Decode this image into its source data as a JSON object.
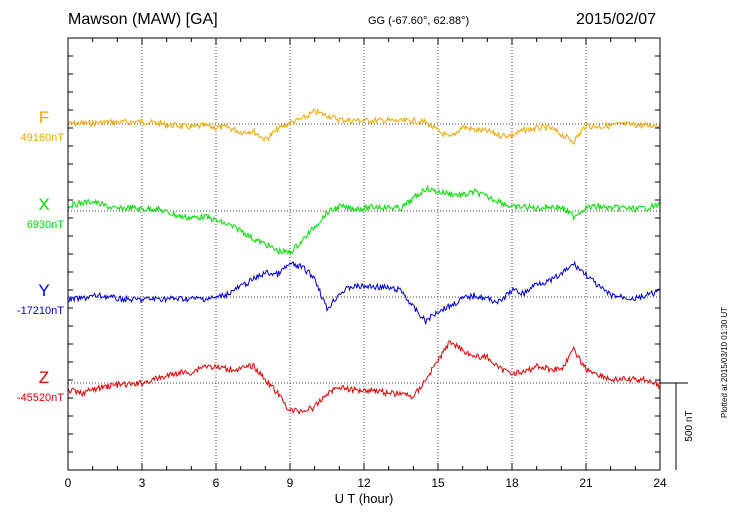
{
  "header": {
    "station": "Mawson (MAW)  [GA]",
    "coordinates": "GG (-67.60°,  62.88°)",
    "date": "2015/02/07"
  },
  "plotted_note": "Plotted at 2015/03/10 01:30 UT",
  "chart_data": {
    "type": "line",
    "title": "Mawson (MAW)  [GA]",
    "xlabel": "U T (hour)",
    "ylabel": "",
    "xlim": [
      0,
      24
    ],
    "xticks": [
      0,
      3,
      6,
      9,
      12,
      15,
      18,
      21,
      24
    ],
    "grid": true,
    "scale_bar": {
      "label": "500 nT",
      "value": 500
    },
    "series": [
      {
        "name": "F",
        "baseline_label": "49160nT",
        "baseline": 49160,
        "color": "#f0a800",
        "x": [
          0,
          0.5,
          1,
          1.5,
          2,
          2.5,
          3,
          3.5,
          4,
          4.5,
          5,
          5.5,
          6,
          6.5,
          7,
          7.5,
          8,
          8.5,
          9,
          9.5,
          10,
          10.5,
          11,
          11.5,
          12,
          12.5,
          13,
          13.5,
          14,
          14.5,
          15,
          15.5,
          16,
          16.5,
          17,
          17.5,
          18,
          18.5,
          19,
          19.5,
          20,
          20.5,
          21,
          21.5,
          22,
          22.5,
          23,
          23.5,
          24
        ],
        "y": [
          49160,
          49165,
          49165,
          49170,
          49170,
          49170,
          49175,
          49165,
          49155,
          49150,
          49140,
          49150,
          49140,
          49140,
          49115,
          49120,
          49070,
          49130,
          49165,
          49190,
          49230,
          49210,
          49185,
          49180,
          49180,
          49180,
          49180,
          49175,
          49180,
          49170,
          49120,
          49080,
          49145,
          49125,
          49120,
          49095,
          49095,
          49125,
          49135,
          49140,
          49100,
          49060,
          49150,
          49145,
          49150,
          49160,
          49155,
          49150,
          49155
        ]
      },
      {
        "name": "X",
        "baseline_label": "6930nT",
        "baseline": 6930,
        "color": "#00e000",
        "x": [
          0,
          0.5,
          1,
          1.5,
          2,
          2.5,
          3,
          3.5,
          4,
          4.5,
          5,
          5.5,
          6,
          6.5,
          7,
          7.5,
          8,
          8.5,
          9,
          9.5,
          10,
          10.5,
          11,
          11.5,
          12,
          12.5,
          13,
          13.5,
          14,
          14.5,
          15,
          15.5,
          16,
          16.5,
          17,
          17.5,
          18,
          18.5,
          19,
          19.5,
          20,
          20.5,
          21,
          21.5,
          22,
          22.5,
          23,
          23.5,
          24
        ],
        "y": [
          6960,
          6975,
          6985,
          6960,
          6940,
          6950,
          6940,
          6945,
          6925,
          6900,
          6890,
          6900,
          6875,
          6850,
          6820,
          6770,
          6740,
          6700,
          6690,
          6760,
          6840,
          6920,
          6955,
          6945,
          6945,
          6955,
          6950,
          6945,
          7000,
          7060,
          7040,
          7030,
          7020,
          7040,
          7010,
          6985,
          6950,
          6955,
          6945,
          6955,
          6950,
          6900,
          6950,
          6955,
          6945,
          6950,
          6940,
          6950,
          6965
        ]
      },
      {
        "name": "Y",
        "baseline_label": "-17210nT",
        "baseline": -17210,
        "color": "#0000e6",
        "x": [
          0,
          0.5,
          1,
          1.5,
          2,
          2.5,
          3,
          3.5,
          4,
          4.5,
          5,
          5.5,
          6,
          6.5,
          7,
          7.5,
          8,
          8.5,
          9,
          9.5,
          10,
          10.5,
          11,
          11.5,
          12,
          12.5,
          13,
          13.5,
          14,
          14.5,
          15,
          15.5,
          16,
          16.5,
          17,
          17.5,
          18,
          18.5,
          19,
          19.5,
          20,
          20.5,
          21,
          21.5,
          22,
          22.5,
          23,
          23.5,
          24
        ],
        "y": [
          -17225,
          -17220,
          -17205,
          -17205,
          -17220,
          -17225,
          -17225,
          -17220,
          -17220,
          -17220,
          -17220,
          -17220,
          -17215,
          -17190,
          -17150,
          -17110,
          -17070,
          -17080,
          -17020,
          -17040,
          -17100,
          -17280,
          -17190,
          -17150,
          -17150,
          -17150,
          -17160,
          -17170,
          -17270,
          -17350,
          -17290,
          -17260,
          -17220,
          -17200,
          -17220,
          -17240,
          -17170,
          -17190,
          -17130,
          -17120,
          -17080,
          -17020,
          -17080,
          -17150,
          -17200,
          -17210,
          -17220,
          -17200,
          -17175
        ]
      },
      {
        "name": "Z",
        "baseline_label": "-45520nT",
        "baseline": -45520,
        "color": "#e60000",
        "x": [
          0,
          0.5,
          1,
          1.5,
          2,
          2.5,
          3,
          3.5,
          4,
          4.5,
          5,
          5.5,
          6,
          6.5,
          7,
          7.5,
          8,
          8.5,
          9,
          9.5,
          10,
          10.5,
          11,
          11.5,
          12,
          12.5,
          13,
          13.5,
          14,
          14.5,
          15,
          15.5,
          16,
          16.5,
          17,
          17.5,
          18,
          18.5,
          19,
          19.5,
          20,
          20.5,
          21,
          21.5,
          22,
          22.5,
          23,
          23.5,
          24
        ],
        "y": [
          -45560,
          -45580,
          -45560,
          -45540,
          -45530,
          -45530,
          -45520,
          -45500,
          -45480,
          -45460,
          -45460,
          -45420,
          -45430,
          -45440,
          -45440,
          -45420,
          -45500,
          -45580,
          -45680,
          -45680,
          -45660,
          -45580,
          -45540,
          -45560,
          -45560,
          -45560,
          -45580,
          -45580,
          -45600,
          -45500,
          -45390,
          -45280,
          -45330,
          -45370,
          -45370,
          -45440,
          -45460,
          -45460,
          -45420,
          -45440,
          -45440,
          -45330,
          -45440,
          -45470,
          -45500,
          -45500,
          -45500,
          -45500,
          -45540
        ]
      }
    ]
  }
}
